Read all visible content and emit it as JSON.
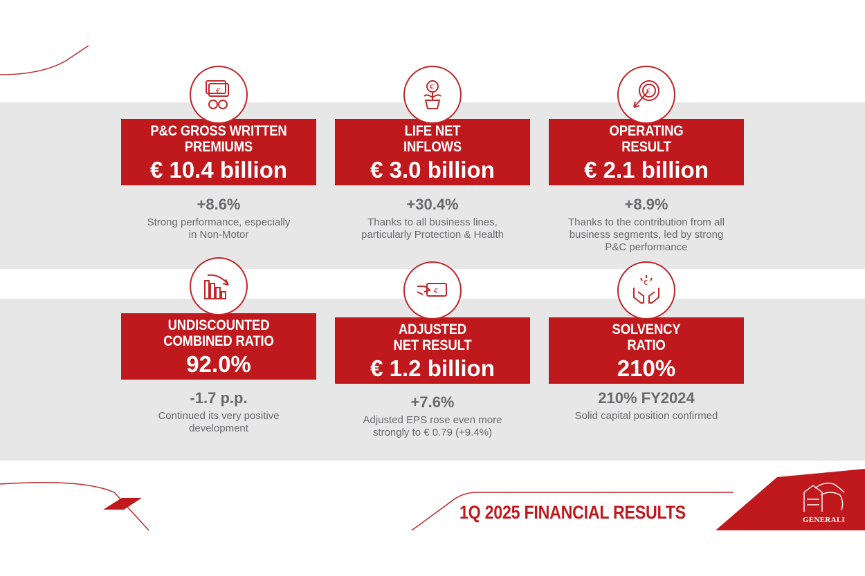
{
  "colors": {
    "brand_red": "#c0191d",
    "band_gray": "#e7e7e8",
    "text_gray": "#6a6a6c"
  },
  "cards": [
    {
      "icon": "money-icon",
      "title_line1": "P&C GROSS WRITTEN",
      "title_line2": "PREMIUMS",
      "value": "€ 10.4 billion",
      "delta": "+8.6%",
      "desc_line1": "Strong performance, especially",
      "desc_line2": "in Non-Motor",
      "desc_line3": ""
    },
    {
      "icon": "plant-coin-icon",
      "title_line1": "LIFE NET",
      "title_line2": "INFLOWS",
      "value": "€ 3.0 billion",
      "delta": "+30.4%",
      "desc_line1": "Thanks to all business lines,",
      "desc_line2": "particularly Protection & Health",
      "desc_line3": ""
    },
    {
      "icon": "target-coin-icon",
      "title_line1": "OPERATING",
      "title_line2": "RESULT",
      "value": "€ 2.1 billion",
      "delta": "+8.9%",
      "desc_line1": "Thanks to the contribution from all",
      "desc_line2": "business segments, led by strong",
      "desc_line3": "P&C performance"
    },
    {
      "icon": "bar-chart-down-icon",
      "title_line1": "UNDISCOUNTED",
      "title_line2": "COMBINED RATIO",
      "value": "92.0%",
      "delta": "-1.7 p.p.",
      "desc_line1": "Continued its very positive",
      "desc_line2": "development",
      "desc_line3": ""
    },
    {
      "icon": "hand-banknote-icon",
      "title_line1": "ADJUSTED",
      "title_line2": "NET RESULT",
      "value": "€ 1.2 billion",
      "delta": "+7.6%",
      "desc_line1": "Adjusted EPS rose even more",
      "desc_line2": "strongly to € 0.79 (+9.4%)",
      "desc_line3": ""
    },
    {
      "icon": "hands-coin-icon",
      "title_line1": "SOLVENCY",
      "title_line2": "RATIO",
      "value": "210%",
      "delta": "210% FY2024",
      "desc_line1": "Solid capital position confirmed",
      "desc_line2": "",
      "desc_line3": ""
    }
  ],
  "footer": {
    "title": "1Q 2025 FINANCIAL RESULTS",
    "logo_text": "GENERALI"
  }
}
